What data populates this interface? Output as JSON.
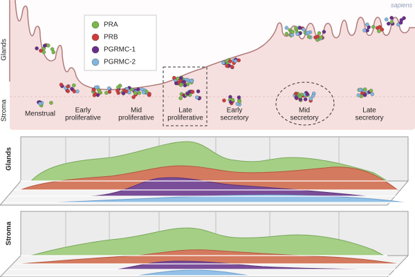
{
  "watermark": "sapiens",
  "top_side_labels": [
    "Glands",
    "Stroma"
  ],
  "legend": [
    {
      "label": "PRA",
      "color": "#79b84a"
    },
    {
      "label": "PRB",
      "color": "#d13b3b"
    },
    {
      "label": "PGRMC-1",
      "color": "#6a2d8c"
    },
    {
      "label": "PGRMC-2",
      "color": "#7fb6e0"
    }
  ],
  "phases": [
    [
      "Menstrual"
    ],
    [
      "Early",
      "proliferative"
    ],
    [
      "Mid",
      "proliferative"
    ],
    [
      "Late",
      "proliferative"
    ],
    [
      "Early",
      "secretory"
    ],
    [
      "Mid",
      "secretory"
    ],
    [
      "Late",
      "secretory"
    ]
  ],
  "panel_labels": [
    "Glands",
    "Stroma"
  ]
}
